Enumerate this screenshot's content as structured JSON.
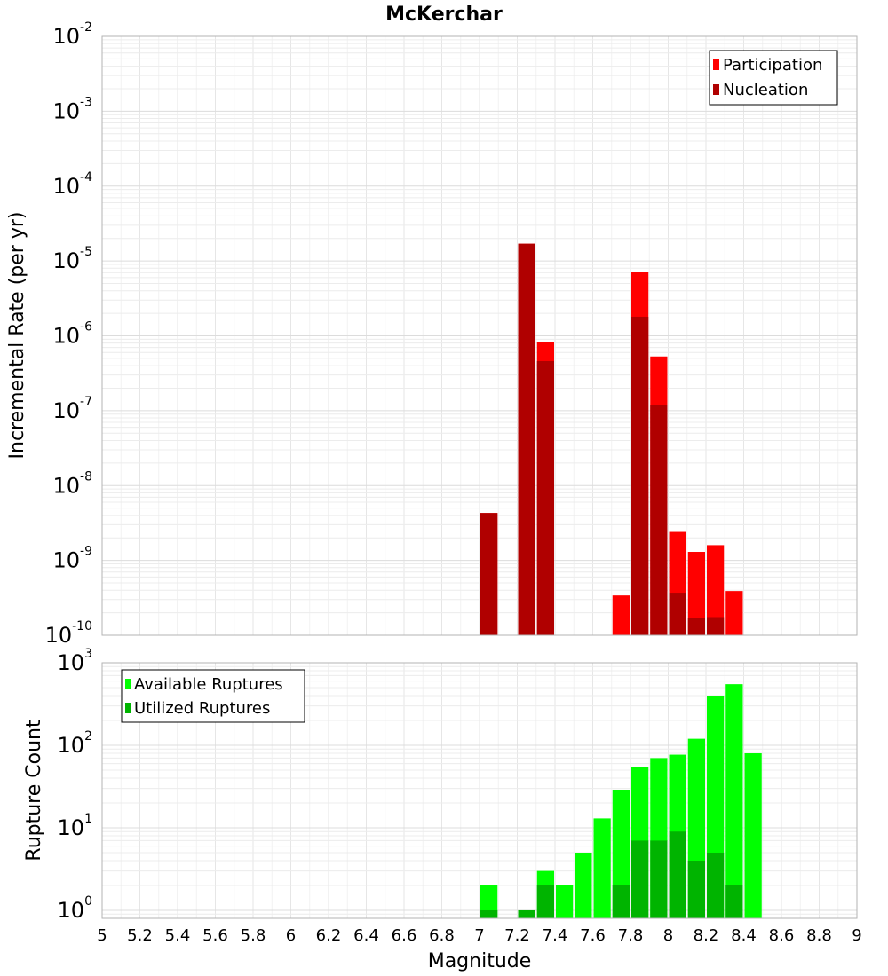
{
  "chart_data": [
    {
      "type": "bar",
      "title": "McKerchar",
      "xlabel": "",
      "ylabel": "Incremental Rate (per yr)",
      "yscale": "log",
      "ylim": [
        1e-10,
        0.01
      ],
      "xlim": [
        5,
        9
      ],
      "grid": true,
      "legend_position": "top-right",
      "y_ticks": [
        {
          "base": "10",
          "exp": "-10"
        },
        {
          "base": "10",
          "exp": "-9"
        },
        {
          "base": "10",
          "exp": "-8"
        },
        {
          "base": "10",
          "exp": "-7"
        },
        {
          "base": "10",
          "exp": "-6"
        },
        {
          "base": "10",
          "exp": "-5"
        },
        {
          "base": "10",
          "exp": "-4"
        },
        {
          "base": "10",
          "exp": "-3"
        },
        {
          "base": "10",
          "exp": "-2"
        }
      ],
      "series": [
        {
          "name": "Participation",
          "color": "#ff0000",
          "x": [
            7.05,
            7.25,
            7.35,
            7.75,
            7.85,
            7.95,
            8.05,
            8.15,
            8.25,
            8.35
          ],
          "values": [
            4.3e-09,
            1.7e-05,
            8.2e-07,
            3.4e-10,
            7.1e-06,
            5.3e-07,
            2.4e-09,
            1.3e-09,
            1.6e-09,
            3.9e-10
          ]
        },
        {
          "name": "Nucleation",
          "color": "#b00000",
          "x": [
            7.05,
            7.25,
            7.35,
            7.85,
            7.95,
            8.05,
            8.15,
            8.25
          ],
          "values": [
            4.3e-09,
            1.7e-05,
            4.6e-07,
            1.8e-06,
            1.2e-07,
            3.7e-10,
            1.7e-10,
            1.75e-10
          ]
        }
      ]
    },
    {
      "type": "bar",
      "title": "",
      "xlabel": "Magnitude",
      "ylabel": "Rupture Count",
      "yscale": "log",
      "ylim": [
        0.8,
        1000
      ],
      "xlim": [
        5,
        9
      ],
      "grid": true,
      "legend_position": "top-left",
      "x_ticks": [
        "5",
        "5.2",
        "5.4",
        "5.6",
        "5.8",
        "6",
        "6.2",
        "6.4",
        "6.6",
        "6.8",
        "7",
        "7.2",
        "7.4",
        "7.6",
        "7.8",
        "8",
        "8.2",
        "8.4",
        "8.6",
        "8.8",
        "9"
      ],
      "y_ticks": [
        {
          "base": "10",
          "exp": "0"
        },
        {
          "base": "10",
          "exp": "1"
        },
        {
          "base": "10",
          "exp": "2"
        },
        {
          "base": "10",
          "exp": "3"
        }
      ],
      "series": [
        {
          "name": "Available Ruptures",
          "color": "#00ff00",
          "x": [
            7.05,
            7.25,
            7.35,
            7.45,
            7.55,
            7.65,
            7.75,
            7.85,
            7.95,
            8.05,
            8.15,
            8.25,
            8.35,
            8.45
          ],
          "values": [
            2,
            1,
            3,
            2,
            5,
            13,
            29,
            55,
            70,
            77,
            120,
            400,
            550,
            80
          ]
        },
        {
          "name": "Utilized Ruptures",
          "color": "#00b400",
          "x": [
            7.05,
            7.25,
            7.35,
            7.75,
            7.85,
            7.95,
            8.05,
            8.15,
            8.25,
            8.35
          ],
          "values": [
            1,
            1,
            2,
            2,
            7,
            7,
            9,
            4,
            5,
            2
          ]
        }
      ]
    }
  ]
}
